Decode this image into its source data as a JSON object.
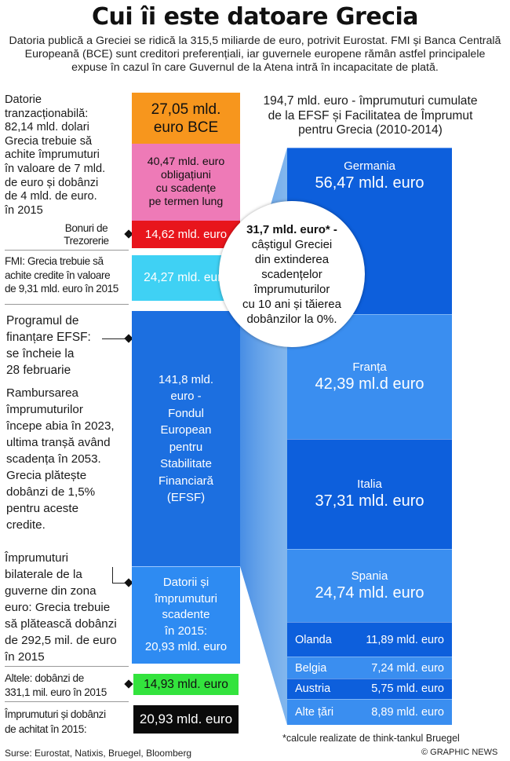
{
  "title": "Cui îi este datoare Grecia",
  "subtitle": "Datoria publică a Greciei se ridică la 315,5 miliarde de euro, potrivit Eurostat. FMI și Banca Centrală Europeană (BCE) sunt creditori preferențiali, iar guvernele europene rămân astfel principalele expuse în cazul în care Guvernul de la Atena intră în incapacitate de plată.",
  "chart_data": {
    "type": "stacked-blocks",
    "left_column": [
      {
        "lines": [
          "27,05 mld.",
          "euro BCE"
        ],
        "value": 27.05,
        "unit": "mld. euro",
        "color": "#f7961d"
      },
      {
        "lines": [
          "40,47 mld. euro",
          "obligațiuni",
          "cu scadențe",
          "pe termen lung"
        ],
        "value": 40.47,
        "unit": "mld. euro",
        "color": "#ee7ab7"
      },
      {
        "lines": [
          "14,62 mld. euro"
        ],
        "value": 14.62,
        "unit": "mld. euro",
        "color": "#e8151c"
      },
      {
        "lines": [
          "24,27 mld. euro"
        ],
        "value": 24.27,
        "unit": "mld. euro",
        "color": "#3fd1f4"
      },
      {
        "lines": [
          "141,8 mld.",
          "euro -",
          "Fondul",
          "European",
          "pentru",
          "Stabilitate",
          "Financiară",
          "(EFSF)"
        ],
        "value": 141.8,
        "unit": "mld. euro",
        "color": "#1c6fe0"
      },
      {
        "lines": [
          "Datorii și",
          "împrumuturi",
          "scadente",
          "în 2015:",
          "20,93 mld. euro"
        ],
        "value": 20.93,
        "unit": "mld. euro",
        "color": "#2e8bf2"
      },
      {
        "lines": [
          "14,93 mld. euro"
        ],
        "value": 14.93,
        "unit": "mld. euro",
        "color": "#33e33d"
      },
      {
        "lines": [
          "20,93 mld. euro"
        ],
        "value": 20.93,
        "unit": "mld. euro",
        "color": "#0a0a0a"
      }
    ],
    "notes": {
      "traded": [
        "Datorie",
        "tranzacționabilă:",
        "82,14 mld. dolari",
        "Grecia trebuie să",
        "achite împrumuturi",
        "în valoare de 7 mld.",
        "de euro și dobânzi",
        "de 4 mld. de euro.",
        "în 2015"
      ],
      "bonds": [
        "Bonuri de",
        "Trezorerie"
      ],
      "imf": [
        "FMI: Grecia trebuie să",
        "achite credite în valoare",
        "de 9,31 mld. euro în 2015"
      ],
      "efsf_program": [
        "Programul de",
        "finanțare EFSF:",
        "se încheie la",
        "28 februarie"
      ],
      "repay": [
        "Rambursarea",
        "împrumuturilor",
        "începe abia în 2023,",
        "ultima tranșă având",
        "scadența în 2053.",
        "Grecia plătește",
        "dobânzi de 1,5%",
        "pentru aceste",
        "credite."
      ],
      "bilateral": [
        "Împrumuturi",
        "bilaterale de la",
        "guverne din zona",
        "euro: Grecia trebuie",
        "să plătească dobânzi",
        "de 292,5 mil. de euro",
        "în 2015"
      ],
      "other": [
        "Altele: dobânzi de",
        "331,1 mil. euro în 2015"
      ],
      "total": [
        "Împrumuturi și dobânzi",
        "de achitat în 2015:"
      ]
    },
    "right_title": [
      "194,7 mld. euro - împrumuturi cumulate",
      "de la EFSF și Facilitatea de Împrumut",
      "pentru Grecia (2010-2014)"
    ],
    "right_total": 194.7,
    "countries": [
      {
        "name": "Germania",
        "label": "56,47 mld. euro",
        "value": 56.47,
        "color": "#0d5fdc"
      },
      {
        "name": "Franța",
        "label": "42,39 ml.d euro",
        "value": 42.39,
        "color": "#3a8ef0"
      },
      {
        "name": "Italia",
        "label": "37,31 mld. euro",
        "value": 37.31,
        "color": "#0d5fdc"
      },
      {
        "name": "Spania",
        "label": "24,74 mld. euro",
        "value": 24.74,
        "color": "#3a8ef0"
      },
      {
        "name": "Olanda",
        "label": "11,89 mld. euro",
        "value": 11.89,
        "color": "#0d5fdc"
      },
      {
        "name": "Belgia",
        "label": "7,24 mld. euro",
        "value": 7.24,
        "color": "#3a8ef0"
      },
      {
        "name": "Austria",
        "label": "5,75 mld. euro",
        "value": 5.75,
        "color": "#0d5fdc"
      },
      {
        "name": "Alte țări",
        "label": "8,89 mld. euro",
        "value": 8.89,
        "color": "#3a8ef0"
      }
    ],
    "callout": {
      "bold": "31,7 mld. euro* -",
      "lines": [
        "câștigul Greciei",
        "din extinderea",
        "scadențelor",
        "împrumuturilor",
        "cu 10 ani și tăierea",
        "dobânzilor la 0%."
      ]
    },
    "footnote": "*calcule realizate de think-tankul Bruegel",
    "sources": "Surse: Eurostat, Natixis, Bruegel, Bloomberg",
    "credit": "© GRAPHIC NEWS"
  }
}
